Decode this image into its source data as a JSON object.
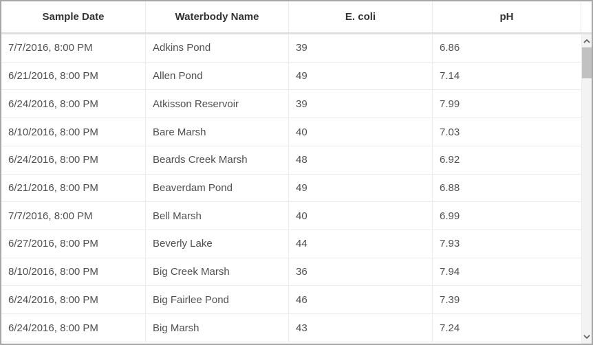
{
  "table": {
    "columns": [
      {
        "label": "Sample Date"
      },
      {
        "label": "Waterbody Name"
      },
      {
        "label": "E. coli"
      },
      {
        "label": "pH"
      }
    ],
    "rows": [
      {
        "sample_date": "7/7/2016, 8:00 PM",
        "waterbody_name": "Adkins Pond",
        "ecoli": "39",
        "ph": "6.86"
      },
      {
        "sample_date": "6/21/2016, 8:00 PM",
        "waterbody_name": "Allen Pond",
        "ecoli": "49",
        "ph": "7.14"
      },
      {
        "sample_date": "6/24/2016, 8:00 PM",
        "waterbody_name": "Atkisson Reservoir",
        "ecoli": "39",
        "ph": "7.99"
      },
      {
        "sample_date": "8/10/2016, 8:00 PM",
        "waterbody_name": "Bare Marsh",
        "ecoli": "40",
        "ph": "7.03"
      },
      {
        "sample_date": "6/24/2016, 8:00 PM",
        "waterbody_name": "Beards Creek Marsh",
        "ecoli": "48",
        "ph": "6.92"
      },
      {
        "sample_date": "6/21/2016, 8:00 PM",
        "waterbody_name": "Beaverdam Pond",
        "ecoli": "49",
        "ph": "6.88"
      },
      {
        "sample_date": "7/7/2016, 8:00 PM",
        "waterbody_name": "Bell Marsh",
        "ecoli": "40",
        "ph": "6.99"
      },
      {
        "sample_date": "6/27/2016, 8:00 PM",
        "waterbody_name": "Beverly Lake",
        "ecoli": "44",
        "ph": "7.93"
      },
      {
        "sample_date": "8/10/2016, 8:00 PM",
        "waterbody_name": "Big Creek Marsh",
        "ecoli": "36",
        "ph": "7.94"
      },
      {
        "sample_date": "6/24/2016, 8:00 PM",
        "waterbody_name": "Big Fairlee Pond",
        "ecoli": "46",
        "ph": "7.39"
      },
      {
        "sample_date": "6/24/2016, 8:00 PM",
        "waterbody_name": "Big Marsh",
        "ecoli": "43",
        "ph": "7.24"
      }
    ]
  },
  "colors": {
    "outer_border": "#a6a6a6",
    "header_text": "#323232",
    "body_text": "#4f4f4f",
    "grid_line": "#e9e9e9",
    "header_border": "#e0e0e0",
    "scrollbar_track": "#f3f3f3",
    "scrollbar_thumb": "#c1c1c1",
    "scrollbar_arrow": "#5a5a5a"
  }
}
